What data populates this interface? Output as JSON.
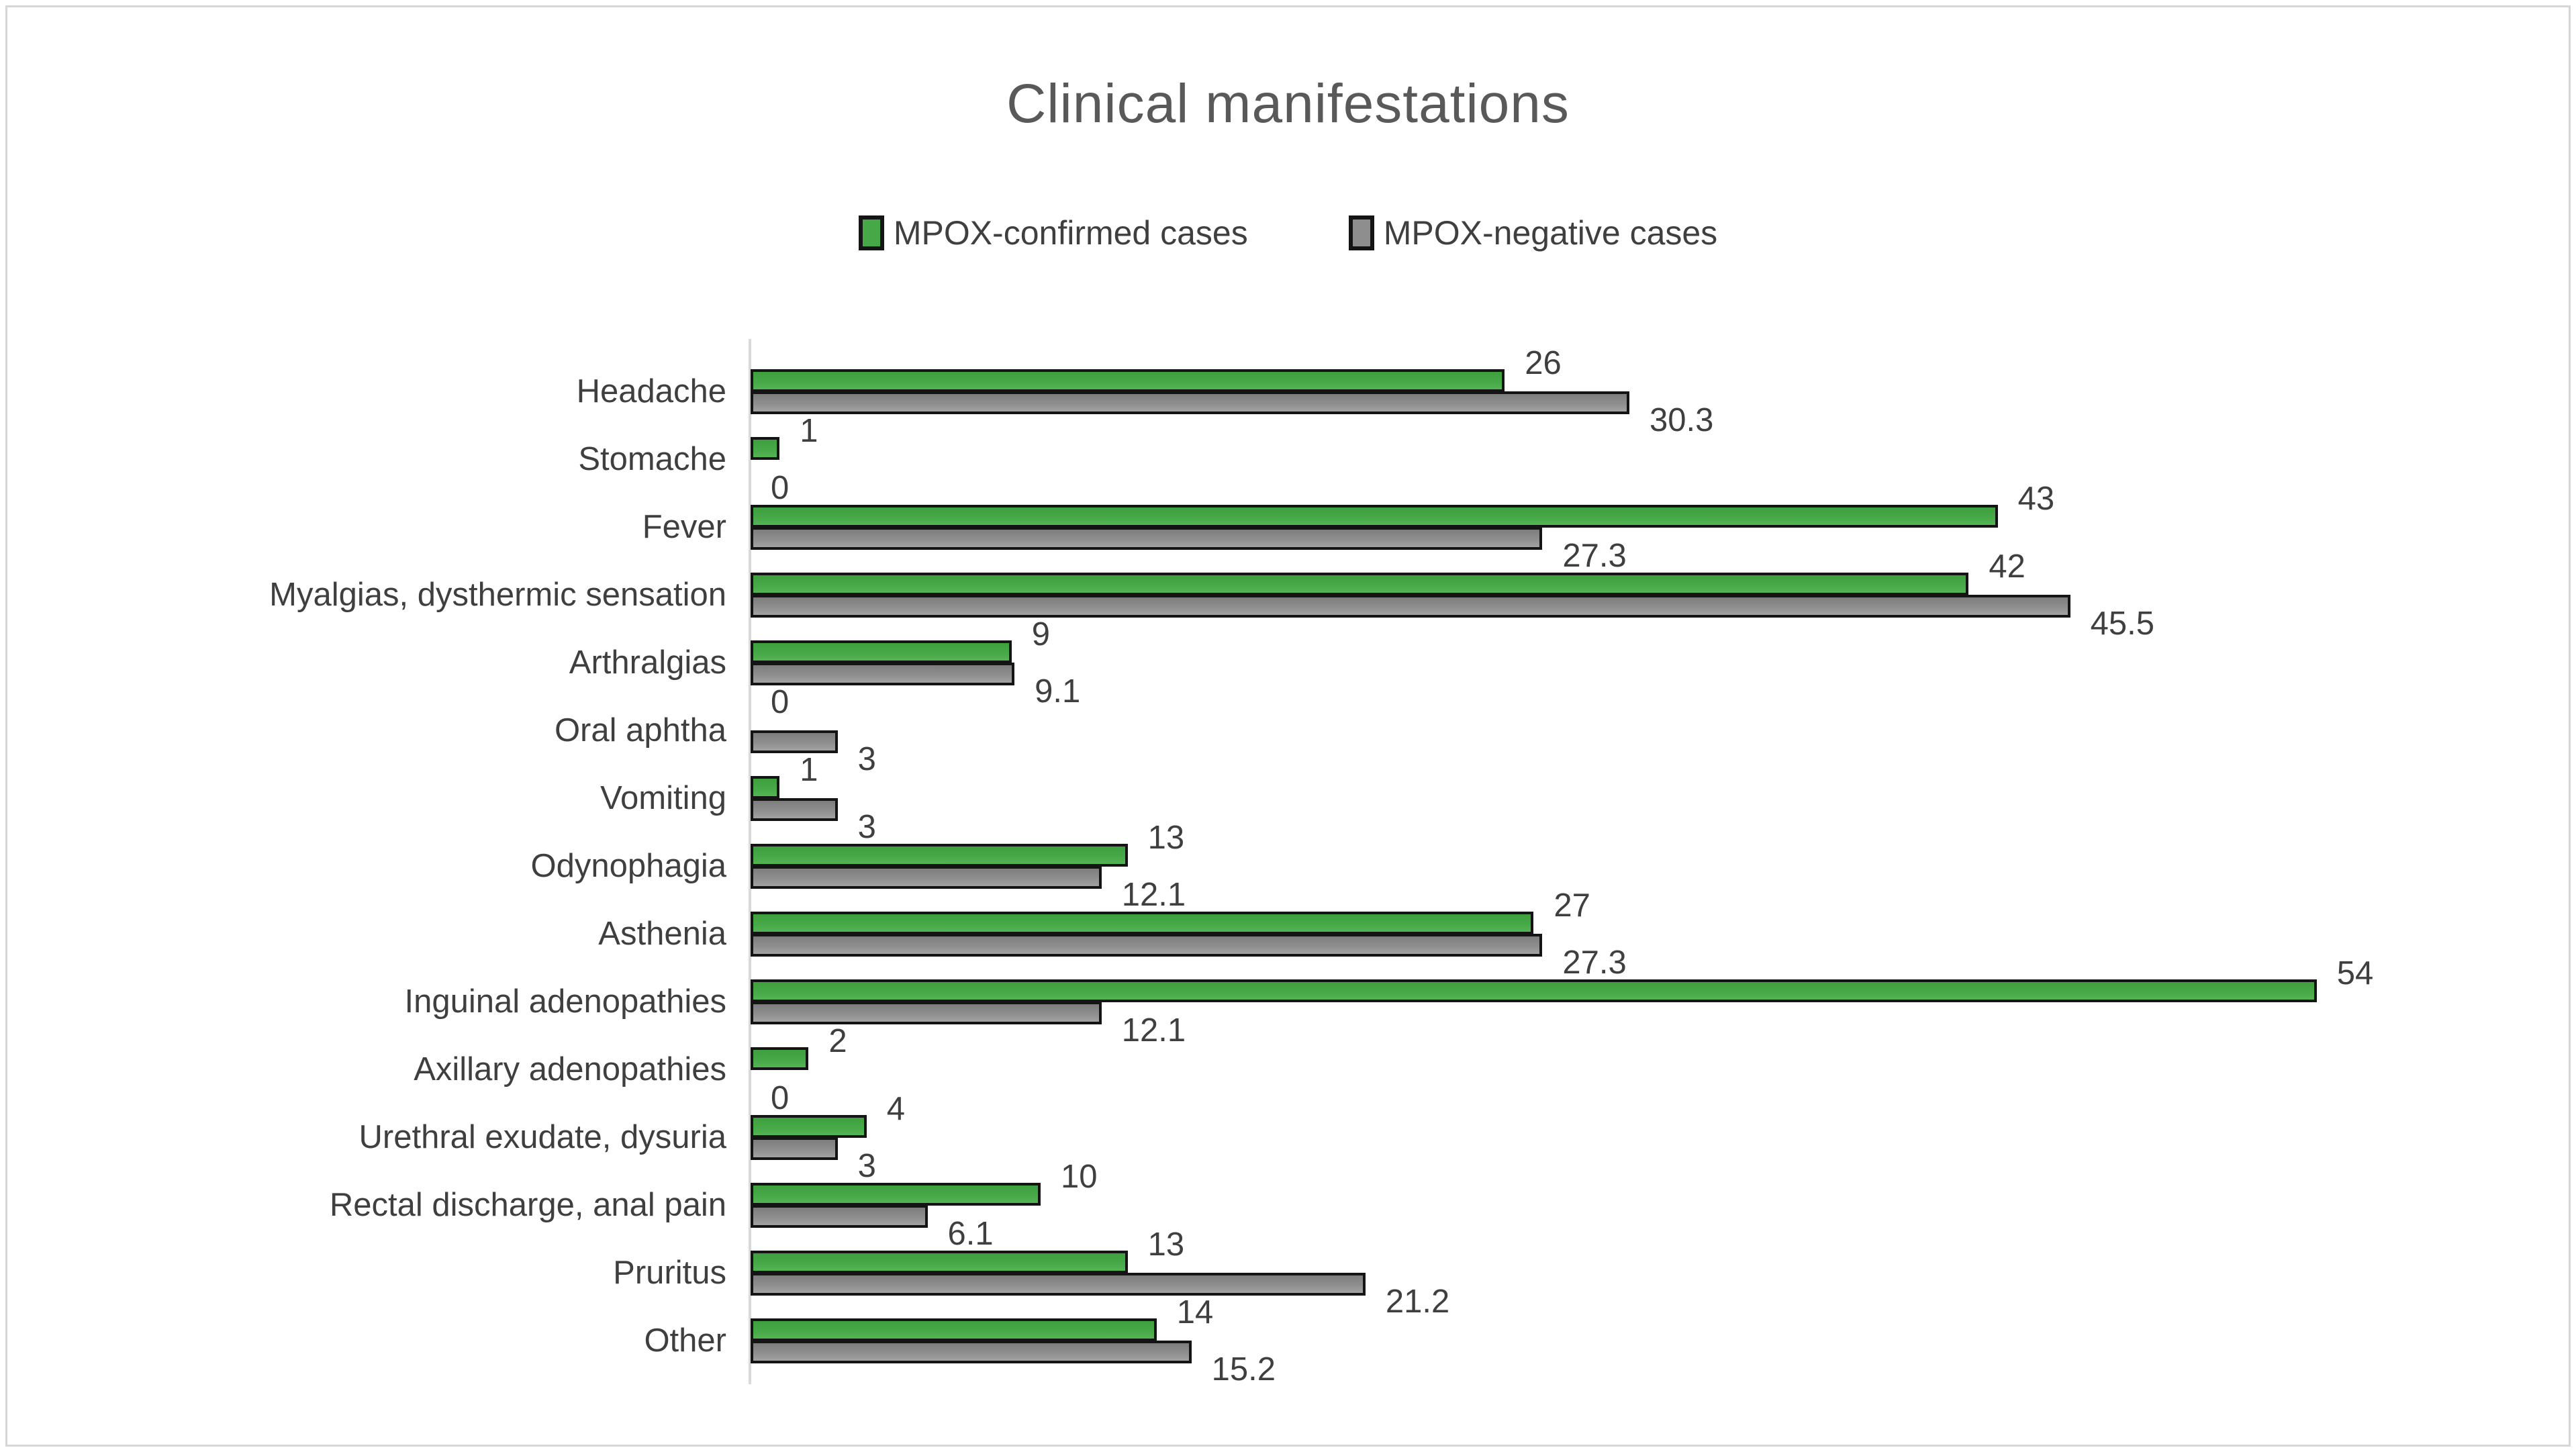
{
  "title": "Clinical manifestations",
  "chart_data": {
    "type": "bar",
    "orientation": "horizontal",
    "title": "Clinical manifestations",
    "categories": [
      "Headache",
      "Stomache",
      "Fever",
      "Myalgias, dysthermic sensation",
      "Arthralgias",
      "Oral aphtha",
      "Vomiting",
      "Odynophagia",
      "Asthenia",
      "Inguinal adenopathies",
      "Axillary adenopathies",
      "Urethral exudate, dysuria",
      "Rectal discharge, anal pain",
      "Pruritus",
      "Other"
    ],
    "series": [
      {
        "name": "MPOX-confirmed cases",
        "color": "#46a846",
        "values": [
          26,
          1,
          43,
          42,
          9,
          0,
          1,
          13,
          27,
          54,
          2,
          4,
          10,
          13,
          14
        ]
      },
      {
        "name": "MPOX-negative cases",
        "color": "#8e8e8e",
        "values": [
          30.3,
          0,
          27.3,
          45.5,
          9.1,
          3,
          3,
          12.1,
          27.3,
          12.1,
          0,
          3,
          6.1,
          21.2,
          15.2
        ]
      }
    ],
    "xlim": [
      0,
      57
    ],
    "grid": false,
    "value_labels": true,
    "legend_position": "top"
  },
  "colors": {
    "title_text": "#595959",
    "label_text": "#3f3f3f",
    "bar_border": "#141414",
    "axis_line": "#d9d9d9",
    "frame_border": "#d6d6d6",
    "background": "#ffffff"
  }
}
